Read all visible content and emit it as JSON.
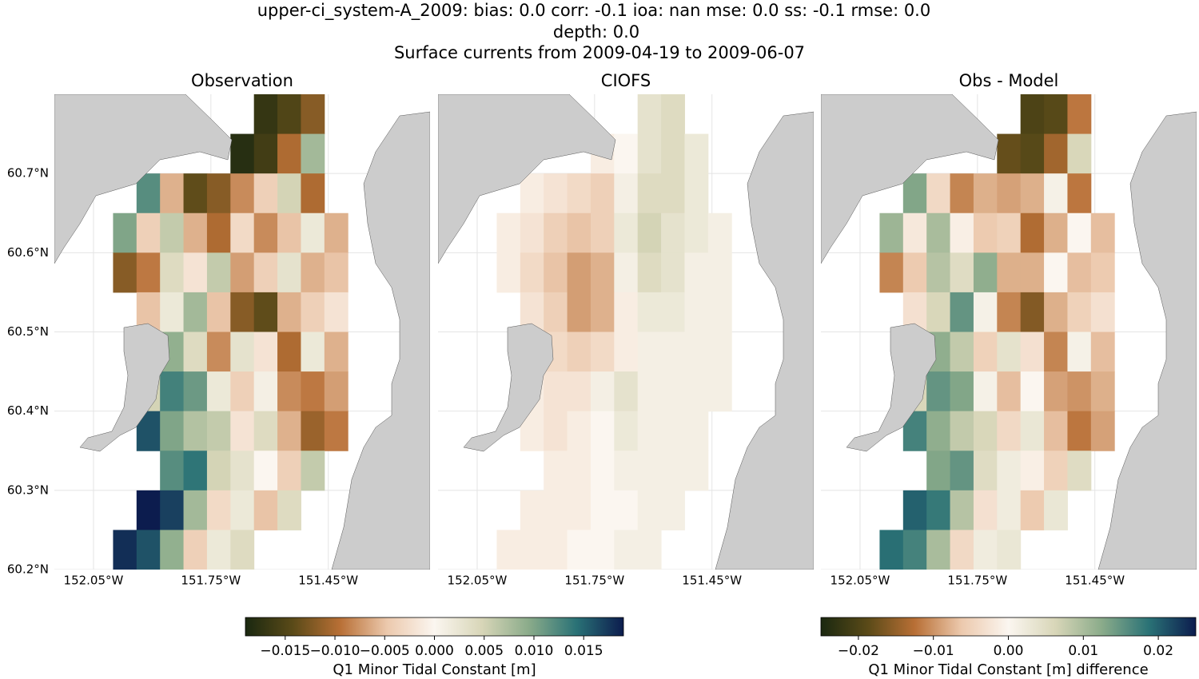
{
  "title_lines": [
    "upper-ci_system-A_2009: bias: 0.0  corr: -0.1  ioa: nan  mse: 0.0  ss: -0.1  rmse: 0.0",
    "depth: 0.0",
    "Surface currents from 2009-04-19 to 2009-06-07"
  ],
  "colormap": [
    "#1a2810",
    "#5a4a18",
    "#b86f35",
    "#ecc9ad",
    "#fbf6f0",
    "#d8d6b8",
    "#8aab8a",
    "#2a7276",
    "#0c1c4e"
  ],
  "land_color": "#cccccc",
  "chart_data": [
    {
      "type": "heatmap",
      "title": "Observation",
      "xlim": [
        -152.15,
        -151.19
      ],
      "ylim": [
        60.2,
        60.8
      ],
      "xticks": [
        {
          "value": -152.05,
          "label": "152.05°W"
        },
        {
          "value": -151.75,
          "label": "151.75°W"
        },
        {
          "value": -151.45,
          "label": "151.45°W"
        }
      ],
      "yticks": [
        {
          "value": 60.2,
          "label": "60.2°N"
        },
        {
          "value": 60.3,
          "label": "60.3°N"
        },
        {
          "value": 60.4,
          "label": "60.4°N"
        },
        {
          "value": 60.5,
          "label": "60.5°N"
        },
        {
          "value": 60.6,
          "label": "60.6°N"
        },
        {
          "value": 60.7,
          "label": "60.7°N"
        }
      ],
      "x": [
        -151.97,
        -151.91,
        -151.85,
        -151.79,
        -151.73,
        -151.67,
        -151.61,
        -151.55,
        -151.49,
        -151.43
      ],
      "y": [
        60.775,
        60.725,
        60.675,
        60.625,
        60.575,
        60.525,
        60.475,
        60.425,
        60.375,
        60.325,
        60.275,
        60.225
      ],
      "values": [
        [
          null,
          null,
          null,
          null,
          null,
          null,
          -0.017,
          -0.015,
          -0.012,
          null
        ],
        [
          null,
          null,
          null,
          null,
          null,
          -0.018,
          -0.016,
          -0.01,
          0.008,
          null
        ],
        [
          null,
          0.012,
          -0.006,
          -0.014,
          -0.012,
          -0.008,
          -0.004,
          0.005,
          -0.01,
          null
        ],
        [
          0.01,
          -0.004,
          0.006,
          -0.006,
          -0.01,
          -0.003,
          -0.008,
          -0.005,
          0.002,
          -0.006
        ],
        [
          -0.012,
          -0.009,
          0.004,
          -0.002,
          0.006,
          -0.007,
          -0.004,
          0.003,
          -0.006,
          -0.005
        ],
        [
          null,
          -0.005,
          0.002,
          0.008,
          -0.005,
          -0.012,
          -0.014,
          -0.006,
          -0.004,
          -0.002
        ],
        [
          null,
          0.015,
          0.009,
          0.004,
          -0.008,
          0.003,
          -0.002,
          -0.01,
          0.002,
          -0.006
        ],
        [
          null,
          0.005,
          0.013,
          0.011,
          0.002,
          -0.004,
          0.001,
          -0.008,
          -0.009,
          -0.007
        ],
        [
          null,
          0.016,
          0.01,
          0.007,
          0.006,
          -0.002,
          0.004,
          -0.006,
          -0.011,
          -0.009
        ],
        [
          null,
          null,
          0.012,
          0.014,
          0.005,
          0.003,
          0.0,
          -0.004,
          0.006,
          null
        ],
        [
          null,
          0.019,
          0.017,
          0.008,
          -0.003,
          0.002,
          -0.005,
          0.004,
          null,
          null
        ],
        [
          0.018,
          0.016,
          0.009,
          -0.004,
          0.002,
          0.004,
          null,
          null,
          null,
          null
        ]
      ]
    },
    {
      "type": "heatmap",
      "title": "CIOFS",
      "xlim": [
        -152.15,
        -151.19
      ],
      "ylim": [
        60.2,
        60.8
      ],
      "xticks": [
        {
          "value": -152.05,
          "label": "152.05°W"
        },
        {
          "value": -151.75,
          "label": "151.75°W"
        },
        {
          "value": -151.45,
          "label": "151.45°W"
        }
      ],
      "x": [
        -151.97,
        -151.91,
        -151.85,
        -151.79,
        -151.73,
        -151.67,
        -151.61,
        -151.55,
        -151.49,
        -151.43
      ],
      "y": [
        60.775,
        60.725,
        60.675,
        60.625,
        60.575,
        60.525,
        60.475,
        60.425,
        60.375,
        60.325,
        60.275,
        60.225
      ],
      "values": [
        [
          null,
          null,
          null,
          null,
          null,
          null,
          0.003,
          0.004,
          null,
          null
        ],
        [
          null,
          null,
          null,
          null,
          -0.001,
          0.0,
          0.003,
          0.004,
          0.002,
          null
        ],
        [
          null,
          -0.001,
          -0.002,
          -0.003,
          -0.004,
          0.001,
          0.004,
          0.004,
          0.002,
          null
        ],
        [
          -0.001,
          -0.002,
          -0.004,
          -0.005,
          -0.004,
          0.002,
          0.005,
          0.003,
          0.002,
          0.001
        ],
        [
          -0.001,
          -0.003,
          -0.005,
          -0.007,
          -0.006,
          0.001,
          0.004,
          0.003,
          0.001,
          0.001
        ],
        [
          null,
          -0.002,
          -0.004,
          -0.007,
          -0.006,
          -0.001,
          0.002,
          0.002,
          0.001,
          0.001
        ],
        [
          null,
          -0.002,
          -0.003,
          -0.004,
          -0.003,
          -0.001,
          0.001,
          0.001,
          0.001,
          0.001
        ],
        [
          null,
          -0.001,
          -0.002,
          -0.002,
          0.001,
          0.003,
          0.001,
          0.001,
          0.001,
          0.001
        ],
        [
          null,
          -0.001,
          -0.002,
          -0.001,
          0.0,
          0.002,
          0.001,
          0.001,
          0.001,
          null
        ],
        [
          null,
          null,
          -0.001,
          -0.001,
          0.0,
          0.001,
          0.001,
          0.001,
          0.001,
          null
        ],
        [
          null,
          -0.001,
          -0.001,
          -0.001,
          0.0,
          0.0,
          0.001,
          0.001,
          null,
          null
        ],
        [
          -0.001,
          -0.001,
          -0.001,
          0.0,
          0.0,
          0.001,
          0.001,
          null,
          null,
          null
        ]
      ]
    },
    {
      "type": "heatmap",
      "title": "Obs - Model",
      "xlim": [
        -152.15,
        -151.19
      ],
      "ylim": [
        60.2,
        60.8
      ],
      "xticks": [
        {
          "value": -152.05,
          "label": "152.05°W"
        },
        {
          "value": -151.75,
          "label": "151.75°W"
        },
        {
          "value": -151.45,
          "label": "151.45°W"
        }
      ],
      "x": [
        -151.97,
        -151.91,
        -151.85,
        -151.79,
        -151.73,
        -151.67,
        -151.61,
        -151.55,
        -151.49,
        -151.43
      ],
      "y": [
        60.775,
        60.725,
        60.675,
        60.625,
        60.575,
        60.525,
        60.475,
        60.425,
        60.375,
        60.325,
        60.275,
        60.225
      ],
      "values": [
        [
          null,
          null,
          null,
          null,
          null,
          null,
          -0.02,
          -0.019,
          -0.012,
          null
        ],
        [
          null,
          null,
          null,
          null,
          null,
          -0.018,
          -0.019,
          -0.014,
          0.006,
          null
        ],
        [
          null,
          0.013,
          -0.004,
          -0.011,
          -0.008,
          -0.009,
          -0.008,
          0.001,
          -0.012,
          null
        ],
        [
          0.011,
          -0.002,
          0.01,
          -0.001,
          -0.006,
          -0.005,
          -0.013,
          -0.008,
          0.0,
          -0.007
        ],
        [
          -0.011,
          -0.006,
          0.009,
          0.005,
          0.012,
          -0.008,
          -0.008,
          0.0,
          -0.007,
          -0.006
        ],
        [
          null,
          -0.003,
          0.006,
          0.015,
          0.001,
          -0.011,
          -0.016,
          -0.008,
          -0.005,
          -0.003
        ],
        [
          null,
          0.017,
          0.012,
          0.008,
          -0.005,
          0.004,
          -0.003,
          -0.011,
          0.001,
          -0.007
        ],
        [
          null,
          0.006,
          0.015,
          0.013,
          0.001,
          -0.007,
          0.0,
          -0.009,
          -0.01,
          -0.008
        ],
        [
          null,
          0.017,
          0.012,
          0.008,
          0.006,
          -0.004,
          0.003,
          -0.007,
          -0.012,
          -0.009
        ],
        [
          null,
          null,
          0.013,
          0.015,
          0.005,
          0.002,
          -0.001,
          -0.005,
          0.005,
          null
        ],
        [
          null,
          0.02,
          0.018,
          0.009,
          -0.003,
          0.002,
          -0.006,
          0.003,
          null,
          null
        ],
        [
          0.019,
          0.017,
          0.01,
          -0.004,
          0.002,
          0.003,
          null,
          null,
          null,
          null
        ]
      ]
    }
  ],
  "colorbars": [
    {
      "label": "Q1 Minor Tidal Constant [m]",
      "lim": [
        -0.019,
        0.019
      ],
      "ticks": [
        {
          "value": -0.015,
          "label": "−0.015"
        },
        {
          "value": -0.01,
          "label": "−0.010"
        },
        {
          "value": -0.005,
          "label": "−0.005"
        },
        {
          "value": 0,
          "label": "0.000"
        },
        {
          "value": 0.005,
          "label": "0.005"
        },
        {
          "value": 0.01,
          "label": "0.010"
        },
        {
          "value": 0.015,
          "label": "0.015"
        }
      ]
    },
    {
      "label": "Q1 Minor Tidal Constant [m] difference",
      "lim": [
        -0.025,
        0.025
      ],
      "ticks": [
        {
          "value": -0.02,
          "label": "−0.02"
        },
        {
          "value": -0.01,
          "label": "−0.01"
        },
        {
          "value": 0,
          "label": "0.00"
        },
        {
          "value": 0.01,
          "label": "0.01"
        },
        {
          "value": 0.02,
          "label": "0.02"
        }
      ]
    }
  ]
}
